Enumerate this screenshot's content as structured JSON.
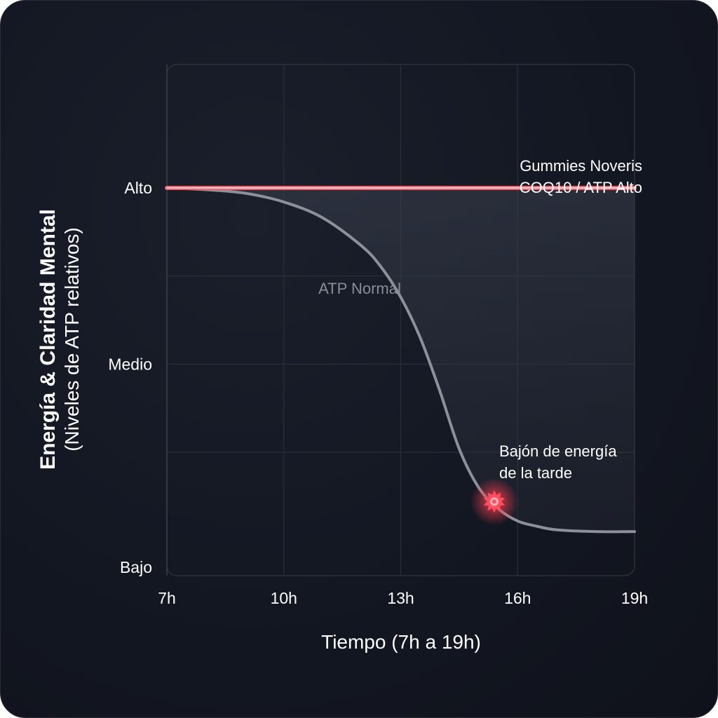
{
  "chart_data": {
    "type": "line",
    "xlabel": "Tiempo (7h a 19h)",
    "ylabel": "Energía & Claridad Mental",
    "ylabel_sub": "(Niveles de ATP relativos)",
    "x_ticks": [
      "7h",
      "10h",
      "13h",
      "16h",
      "19h"
    ],
    "x_tick_values": [
      7,
      10,
      13,
      16,
      19
    ],
    "xlim": [
      7,
      19
    ],
    "y_ticks": [
      "Bajo",
      "Medio",
      "Alto"
    ],
    "y_tick_values": [
      0,
      1,
      2
    ],
    "ylim": [
      -0.2,
      2.7
    ],
    "grid": true,
    "series": [
      {
        "name": "Gummies Noveris COQ10 / ATP Alto",
        "label_lines": [
          "Gummies Noveris",
          "COQ10 / ATP Alto"
        ],
        "color": "#ff5a66",
        "x": [
          7,
          19
        ],
        "y": [
          2,
          2
        ]
      },
      {
        "name": "ATP Normal",
        "label_lines": [
          "ATP Normal"
        ],
        "color": "#8e9099",
        "x": [
          7,
          8,
          9,
          10,
          11,
          12,
          12.5,
          13,
          13.5,
          14,
          14.5,
          15,
          15.5,
          16,
          16.5,
          17,
          18,
          19
        ],
        "y": [
          2,
          1.99,
          1.97,
          1.92,
          1.83,
          1.67,
          1.55,
          1.38,
          1.15,
          0.85,
          0.52,
          0.3,
          0.18,
          0.11,
          0.08,
          0.06,
          0.05,
          0.05
        ]
      }
    ],
    "annotations": [
      {
        "text_lines": [
          "Bajón de energía",
          "de la tarde"
        ],
        "x": 15.4,
        "y": 0.22,
        "color": "#ff4f5e"
      }
    ]
  }
}
